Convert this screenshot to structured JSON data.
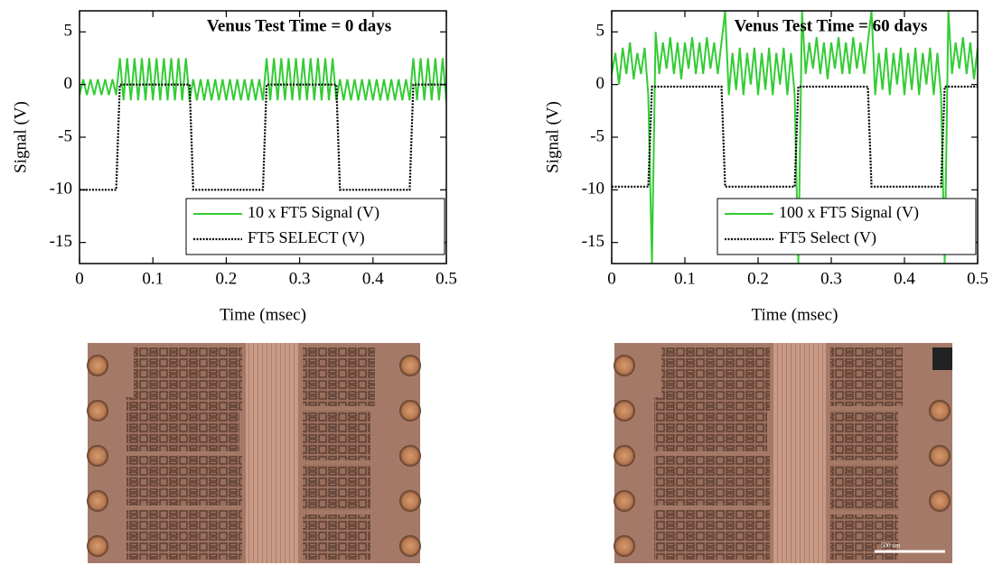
{
  "chart_data": [
    {
      "type": "line",
      "title": "Venus Test Time = 0 days",
      "xlabel": "Time (msec)",
      "ylabel": "Signal (V)",
      "x": [
        0,
        0.005,
        0.01,
        0.015,
        0.02,
        0.025,
        0.03,
        0.035,
        0.04,
        0.045,
        0.05,
        0.055,
        0.06,
        0.065,
        0.07,
        0.075,
        0.08,
        0.085,
        0.09,
        0.095,
        0.1,
        0.105,
        0.11,
        0.115,
        0.12,
        0.125,
        0.13,
        0.135,
        0.14,
        0.145,
        0.15,
        0.155,
        0.16,
        0.165,
        0.17,
        0.175,
        0.18,
        0.185,
        0.19,
        0.195,
        0.2,
        0.205,
        0.21,
        0.215,
        0.22,
        0.225,
        0.23,
        0.235,
        0.24,
        0.245,
        0.25,
        0.255,
        0.26,
        0.265,
        0.27,
        0.275,
        0.28,
        0.285,
        0.29,
        0.295,
        0.3,
        0.305,
        0.31,
        0.315,
        0.32,
        0.325,
        0.33,
        0.335,
        0.34,
        0.345,
        0.35,
        0.355,
        0.36,
        0.365,
        0.37,
        0.375,
        0.38,
        0.385,
        0.39,
        0.395,
        0.4,
        0.405,
        0.41,
        0.415,
        0.42,
        0.425,
        0.43,
        0.435,
        0.44,
        0.445,
        0.45,
        0.455,
        0.46,
        0.465,
        0.47,
        0.475,
        0.48,
        0.485,
        0.49,
        0.495,
        0.5
      ],
      "series": [
        {
          "name": "10 x FT5 Signal (V)",
          "color": "#33cc33",
          "dash": "solid",
          "values": [
            -1,
            0.5,
            -1,
            0.5,
            -1,
            0.5,
            -1,
            0.5,
            -1,
            0.5,
            -1,
            2.5,
            -1.5,
            2.5,
            -1.5,
            2.5,
            -1.5,
            2.5,
            -1.5,
            2.5,
            -1.5,
            2.5,
            -1.5,
            2.5,
            -1.5,
            2.5,
            -1.5,
            2.5,
            -1.5,
            2.5,
            -1.5,
            0.5,
            -1.5,
            0.5,
            -1.5,
            0.5,
            -1.5,
            0.5,
            -1.5,
            0.5,
            -1.5,
            0.5,
            -1.5,
            0.5,
            -1.5,
            0.5,
            -1.5,
            0.5,
            -1.5,
            0.5,
            -1.5,
            2.5,
            -1.5,
            2.5,
            -1.5,
            2.5,
            -1.5,
            2.5,
            -1.5,
            2.5,
            -1.5,
            2.5,
            -1.5,
            2.5,
            -1.5,
            2.5,
            -1.5,
            2.5,
            -1.5,
            2.5,
            -1.5,
            0.5,
            -1.5,
            0.5,
            -1.5,
            0.5,
            -1.5,
            0.5,
            -1.5,
            0.5,
            -1.5,
            0.5,
            -1.5,
            0.5,
            -1.5,
            0.5,
            -1.5,
            0.5,
            -1.5,
            0.5,
            -1.5,
            2.5,
            -1.5,
            2.5,
            -1.5,
            2.5,
            -1.5,
            2.5,
            -1.5,
            2.5,
            -1.5
          ]
        },
        {
          "name": "FT5 SELECT (V)",
          "color": "#000000",
          "dash": "dotted",
          "values": [
            -10,
            -10,
            -10,
            -10,
            -10,
            -10,
            -10,
            -10,
            -10,
            -10,
            -10,
            0,
            0,
            0,
            0,
            0,
            0,
            0,
            0,
            0,
            0,
            0,
            0,
            0,
            0,
            0,
            0,
            0,
            0,
            0,
            0,
            -10,
            -10,
            -10,
            -10,
            -10,
            -10,
            -10,
            -10,
            -10,
            -10,
            -10,
            -10,
            -10,
            -10,
            -10,
            -10,
            -10,
            -10,
            -10,
            -10,
            0,
            0,
            0,
            0,
            0,
            0,
            0,
            0,
            0,
            0,
            0,
            0,
            0,
            0,
            0,
            0,
            0,
            0,
            0,
            0,
            -10,
            -10,
            -10,
            -10,
            -10,
            -10,
            -10,
            -10,
            -10,
            -10,
            -10,
            -10,
            -10,
            -10,
            -10,
            -10,
            -10,
            -10,
            -10,
            -10,
            0,
            0,
            0,
            0,
            0,
            0,
            0,
            0,
            0,
            0
          ]
        }
      ],
      "xlim": [
        0,
        0.5
      ],
      "xticks": [
        0,
        0.1,
        0.2,
        0.3,
        0.4,
        0.5
      ],
      "ylim": [
        -17,
        7
      ],
      "yticks": [
        5,
        0,
        -5,
        -10,
        -15
      ],
      "legend": "lower right"
    },
    {
      "type": "line",
      "title": "Venus Test Time = 60 days",
      "xlabel": "Time (msec)",
      "ylabel": "Signal (V)",
      "x": [
        0,
        0.005,
        0.01,
        0.015,
        0.02,
        0.025,
        0.03,
        0.035,
        0.04,
        0.045,
        0.05,
        0.055,
        0.06,
        0.065,
        0.07,
        0.075,
        0.08,
        0.085,
        0.09,
        0.095,
        0.1,
        0.105,
        0.11,
        0.115,
        0.12,
        0.125,
        0.13,
        0.135,
        0.14,
        0.145,
        0.15,
        0.155,
        0.16,
        0.165,
        0.17,
        0.175,
        0.18,
        0.185,
        0.19,
        0.195,
        0.2,
        0.205,
        0.21,
        0.215,
        0.22,
        0.225,
        0.23,
        0.235,
        0.24,
        0.245,
        0.25,
        0.255,
        0.26,
        0.265,
        0.27,
        0.275,
        0.28,
        0.285,
        0.29,
        0.295,
        0.3,
        0.305,
        0.31,
        0.315,
        0.32,
        0.325,
        0.33,
        0.335,
        0.34,
        0.345,
        0.35,
        0.355,
        0.36,
        0.365,
        0.37,
        0.375,
        0.38,
        0.385,
        0.39,
        0.395,
        0.4,
        0.405,
        0.41,
        0.415,
        0.42,
        0.425,
        0.43,
        0.435,
        0.44,
        0.445,
        0.45,
        0.455,
        0.46,
        0.465,
        0.47,
        0.475,
        0.48,
        0.485,
        0.49,
        0.495,
        0.5
      ],
      "series": [
        {
          "name": "100 x FT5 Signal (V)",
          "color": "#33cc33",
          "dash": "solid",
          "values": [
            1,
            3,
            0,
            3.5,
            1,
            4,
            0.5,
            3,
            1,
            3.5,
            -1,
            -17,
            5,
            1,
            4,
            1.5,
            4.5,
            1,
            4,
            0.5,
            4,
            1.5,
            4.5,
            1,
            4,
            1,
            4.5,
            1.5,
            4,
            1,
            4,
            7,
            -1,
            3,
            -0.5,
            3.5,
            -1,
            3,
            0,
            3.5,
            -1,
            3,
            -0.5,
            3.5,
            -1,
            3,
            0,
            3.5,
            -1,
            3,
            -1,
            -17,
            7,
            1,
            4,
            1.5,
            4.5,
            1,
            4,
            0.5,
            4,
            1.5,
            4.5,
            1,
            4,
            1,
            4.5,
            1.5,
            4,
            1,
            4,
            7,
            -1,
            3,
            -0.5,
            3.5,
            -1,
            3,
            0,
            3.5,
            -1,
            3,
            -0.5,
            3.5,
            -1,
            3,
            0,
            3.5,
            -1,
            3,
            -1,
            -17,
            7,
            1,
            4,
            1.5,
            4.5,
            1,
            4,
            0.5,
            3.5
          ]
        },
        {
          "name": "FT5 Select (V)",
          "color": "#000000",
          "dash": "dotted",
          "values": [
            -9.7,
            -9.7,
            -9.7,
            -9.7,
            -9.7,
            -9.7,
            -9.7,
            -9.7,
            -9.7,
            -9.7,
            -9.7,
            -0.2,
            -0.2,
            -0.2,
            -0.2,
            -0.2,
            -0.2,
            -0.2,
            -0.2,
            -0.2,
            -0.2,
            -0.2,
            -0.2,
            -0.2,
            -0.2,
            -0.2,
            -0.2,
            -0.2,
            -0.2,
            -0.2,
            -0.2,
            -9.7,
            -9.7,
            -9.7,
            -9.7,
            -9.7,
            -9.7,
            -9.7,
            -9.7,
            -9.7,
            -9.7,
            -9.7,
            -9.7,
            -9.7,
            -9.7,
            -9.7,
            -9.7,
            -9.7,
            -9.7,
            -9.7,
            -9.7,
            -0.2,
            -0.2,
            -0.2,
            -0.2,
            -0.2,
            -0.2,
            -0.2,
            -0.2,
            -0.2,
            -0.2,
            -0.2,
            -0.2,
            -0.2,
            -0.2,
            -0.2,
            -0.2,
            -0.2,
            -0.2,
            -0.2,
            -0.2,
            -9.7,
            -9.7,
            -9.7,
            -9.7,
            -9.7,
            -9.7,
            -9.7,
            -9.7,
            -9.7,
            -9.7,
            -9.7,
            -9.7,
            -9.7,
            -9.7,
            -9.7,
            -9.7,
            -9.7,
            -9.7,
            -9.7,
            -9.7,
            -0.2,
            -0.2,
            -0.2,
            -0.2,
            -0.2,
            -0.2,
            -0.2,
            -0.2,
            -0.2,
            -0.2
          ]
        }
      ],
      "xlim": [
        0,
        0.5
      ],
      "xticks": [
        0,
        0.1,
        0.2,
        0.3,
        0.4,
        0.5
      ],
      "ylim": [
        -17,
        7
      ],
      "yticks": [
        5,
        0,
        -5,
        -10,
        -15
      ],
      "legend": "lower right"
    }
  ],
  "images": [
    {
      "scale_label": null
    },
    {
      "scale_label": "500 um"
    }
  ]
}
